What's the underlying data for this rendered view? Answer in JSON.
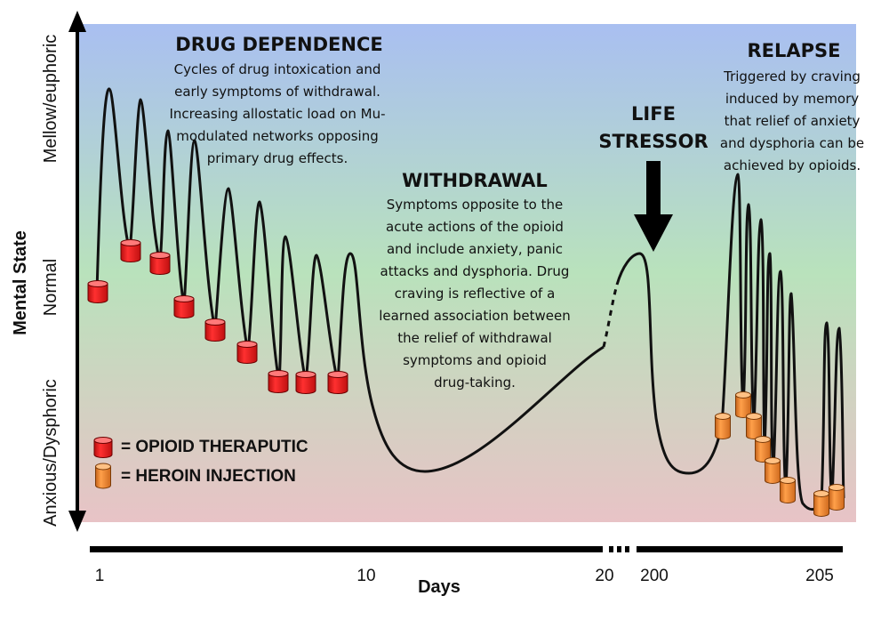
{
  "colors": {
    "bg_top": "#a9bff1",
    "bg_mid": "#b9e2bc",
    "bg_bottom": "#e8c3c6",
    "therapeutic": "#ee1c1c",
    "heroin": "#f0852a",
    "line": "#111111"
  },
  "y_axis": {
    "title": "Mental State",
    "levels": [
      "Mellow/euphoric",
      "Normal",
      "Anxious/Dysphoric"
    ]
  },
  "x_axis": {
    "title": "Days",
    "ticks": [
      "1",
      "10",
      "20",
      "200",
      "205"
    ]
  },
  "phases": {
    "dependence": {
      "title": "DRUG DEPENDENCE",
      "lines": [
        "Cycles of drug intoxication and",
        "early symptoms of withdrawal.",
        "Increasing allostatic load on Mu-",
        "modulated networks opposing",
        "primary drug effects."
      ]
    },
    "withdrawal": {
      "title": "WITHDRAWAL",
      "lines": [
        "Symptoms opposite to the",
        "acute actions of the opioid",
        "and include anxiety, panic",
        "attacks and dysphoria.  Drug",
        "craving is reflective of a",
        "learned association between",
        "the  relief of withdrawal",
        "symptoms and opioid",
        "drug-taking."
      ]
    },
    "stressor": {
      "title_lines": [
        "LIFE",
        "STRESSOR"
      ]
    },
    "relapse": {
      "title": "RELAPSE",
      "lines": [
        "Triggered by craving",
        "induced by memory",
        "that relief of anxiety",
        "and dysphoria  can be",
        "achieved by opioids."
      ]
    }
  },
  "legend": [
    {
      "label": "= OPIOID THERAPUTIC",
      "kind": "therapeutic"
    },
    {
      "label": "= HEROIN INJECTION",
      "kind": "heroin"
    }
  ],
  "icons": {
    "therapeutic_marker": "red-cylinder-icon",
    "heroin_marker": "orange-cylinder-icon",
    "stressor_arrow": "down-arrow-icon"
  }
}
